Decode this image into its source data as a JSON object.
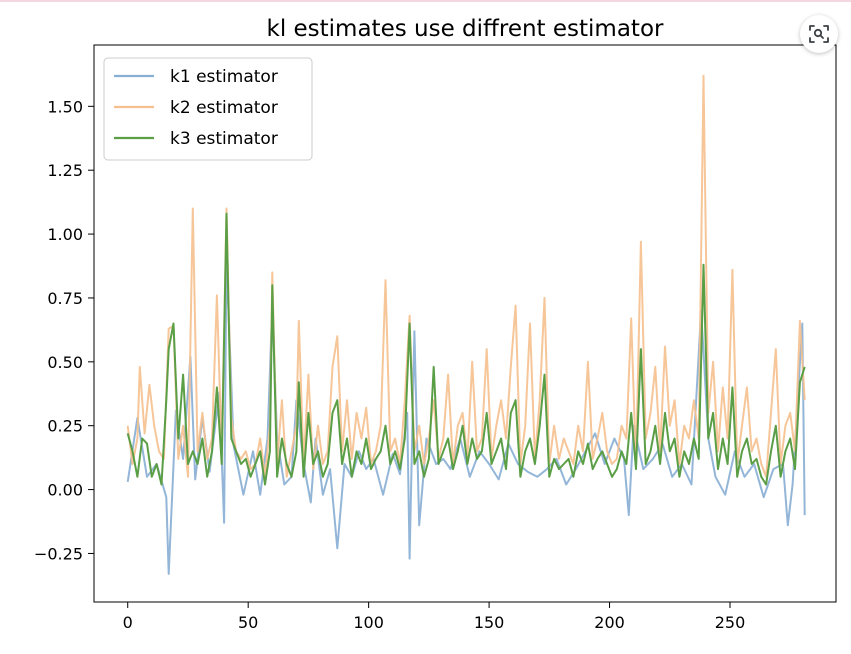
{
  "ui": {
    "lens_icon": "image-search-icon"
  },
  "chart_data": {
    "type": "line",
    "title": "kl estimates use diffrent estimator",
    "xlabel": "",
    "ylabel": "",
    "xlim": [
      -14,
      294
    ],
    "ylim": [
      -0.44,
      1.74
    ],
    "xticks": [
      0,
      50,
      100,
      150,
      200,
      250
    ],
    "yticks": [
      -0.25,
      0.0,
      0.25,
      0.5,
      0.75,
      1.0,
      1.25,
      1.5
    ],
    "ytick_labels": [
      "−0.25",
      "0.00",
      "0.25",
      "0.50",
      "0.75",
      "1.00",
      "1.25",
      "1.50"
    ],
    "grid": false,
    "legend_position": "upper left",
    "series": [
      {
        "name": "k1 estimator",
        "color": "#87aed4",
        "x": [
          0,
          4,
          8,
          12,
          16,
          17,
          20,
          23,
          26,
          28,
          31,
          34,
          38,
          40,
          41,
          44,
          48,
          52,
          55,
          58,
          60,
          62,
          65,
          68,
          70,
          73,
          76,
          78,
          81,
          84,
          87,
          90,
          93,
          96,
          99,
          102,
          106,
          110,
          113,
          116,
          117,
          119,
          121,
          124,
          128,
          131,
          134,
          138,
          142,
          146,
          150,
          154,
          158,
          162,
          166,
          170,
          174,
          178,
          182,
          186,
          190,
          194,
          198,
          202,
          206,
          208,
          210,
          214,
          218,
          222,
          226,
          230,
          234,
          238,
          239,
          241,
          244,
          248,
          252,
          256,
          260,
          264,
          268,
          272,
          274,
          276,
          280,
          281
        ],
        "y": [
          0.03,
          0.28,
          0.05,
          0.1,
          -0.03,
          -0.33,
          0.31,
          0.12,
          0.52,
          0.04,
          0.28,
          0.07,
          0.38,
          -0.13,
          0.9,
          0.17,
          -0.02,
          0.15,
          -0.02,
          0.2,
          0.72,
          0.2,
          0.02,
          0.05,
          0.35,
          0.1,
          -0.05,
          0.2,
          -0.02,
          0.08,
          -0.23,
          0.1,
          0.05,
          0.15,
          0.08,
          0.12,
          -0.02,
          0.14,
          0.06,
          0.3,
          -0.27,
          0.62,
          -0.14,
          0.2,
          0.1,
          0.12,
          0.08,
          0.2,
          0.05,
          0.15,
          0.1,
          0.04,
          0.18,
          0.1,
          0.07,
          0.05,
          0.08,
          0.12,
          0.02,
          0.08,
          0.15,
          0.22,
          0.1,
          0.2,
          0.12,
          -0.1,
          0.25,
          0.08,
          0.12,
          0.18,
          0.05,
          0.1,
          0.02,
          0.7,
          0.54,
          0.2,
          0.05,
          -0.02,
          0.15,
          0.05,
          0.1,
          -0.03,
          0.08,
          0.1,
          -0.14,
          0.02,
          0.65,
          -0.1
        ]
      },
      {
        "name": "k2 estimator",
        "color": "#f5c08e",
        "x": [
          0,
          2,
          4,
          5,
          7,
          9,
          11,
          13,
          15,
          17,
          19,
          21,
          23,
          25,
          27,
          29,
          31,
          33,
          35,
          37,
          39,
          41,
          43,
          45,
          47,
          49,
          51,
          53,
          55,
          57,
          59,
          60,
          62,
          64,
          66,
          68,
          70,
          71,
          73,
          75,
          77,
          79,
          81,
          83,
          85,
          87,
          89,
          91,
          93,
          95,
          97,
          99,
          101,
          103,
          105,
          107,
          109,
          111,
          113,
          115,
          117,
          119,
          121,
          123,
          125,
          127,
          129,
          131,
          133,
          135,
          137,
          139,
          141,
          143,
          145,
          147,
          149,
          151,
          153,
          155,
          157,
          159,
          161,
          163,
          165,
          167,
          169,
          171,
          173,
          175,
          177,
          179,
          181,
          183,
          185,
          187,
          189,
          191,
          193,
          195,
          197,
          199,
          201,
          203,
          205,
          207,
          209,
          211,
          213,
          215,
          217,
          219,
          221,
          223,
          225,
          227,
          229,
          231,
          233,
          235,
          237,
          239,
          241,
          243,
          245,
          247,
          249,
          251,
          253,
          255,
          257,
          259,
          261,
          263,
          265,
          267,
          269,
          271,
          273,
          275,
          277,
          279,
          281
        ],
        "y": [
          0.25,
          0.1,
          0.2,
          0.48,
          0.22,
          0.41,
          0.25,
          0.15,
          0.12,
          0.63,
          0.64,
          0.12,
          0.25,
          0.05,
          1.1,
          0.15,
          0.3,
          0.12,
          0.2,
          0.76,
          0.15,
          1.1,
          0.28,
          0.15,
          0.12,
          0.15,
          0.08,
          0.1,
          0.2,
          0.05,
          0.25,
          0.85,
          0.1,
          0.35,
          0.05,
          0.15,
          0.25,
          0.66,
          0.1,
          0.45,
          0.08,
          0.25,
          0.1,
          0.15,
          0.48,
          0.6,
          0.15,
          0.35,
          0.12,
          0.3,
          0.2,
          0.32,
          0.1,
          0.15,
          0.25,
          0.82,
          0.15,
          0.2,
          0.1,
          0.35,
          0.68,
          0.15,
          0.25,
          0.1,
          0.2,
          0.35,
          0.12,
          0.2,
          0.45,
          0.1,
          0.25,
          0.3,
          0.12,
          0.5,
          0.15,
          0.2,
          0.55,
          0.12,
          0.25,
          0.35,
          0.2,
          0.48,
          0.72,
          0.1,
          0.25,
          0.65,
          0.12,
          0.35,
          0.75,
          0.1,
          0.25,
          0.12,
          0.2,
          0.15,
          0.1,
          0.25,
          0.15,
          0.5,
          0.12,
          0.2,
          0.3,
          0.15,
          0.1,
          0.12,
          0.25,
          0.2,
          0.67,
          0.1,
          0.97,
          0.2,
          0.3,
          0.48,
          0.15,
          0.56,
          0.25,
          0.35,
          0.1,
          0.25,
          0.2,
          0.35,
          0.2,
          1.62,
          0.3,
          0.5,
          0.15,
          0.4,
          0.2,
          0.86,
          0.1,
          0.25,
          0.4,
          0.15,
          0.2,
          0.1,
          0.05,
          0.3,
          0.55,
          0.1,
          0.25,
          0.3,
          0.15,
          0.66,
          0.35
        ]
      },
      {
        "name": "k3 estimator",
        "color": "#5a9e46",
        "x": [
          0,
          2,
          4,
          6,
          8,
          10,
          12,
          14,
          16,
          17,
          19,
          21,
          23,
          25,
          27,
          29,
          31,
          33,
          35,
          37,
          39,
          41,
          43,
          45,
          47,
          49,
          51,
          53,
          55,
          57,
          59,
          60,
          62,
          64,
          66,
          68,
          70,
          71,
          73,
          75,
          77,
          79,
          81,
          83,
          85,
          87,
          89,
          91,
          93,
          95,
          97,
          99,
          101,
          103,
          105,
          107,
          109,
          111,
          113,
          115,
          117,
          119,
          121,
          123,
          125,
          127,
          129,
          131,
          133,
          135,
          137,
          139,
          141,
          143,
          145,
          147,
          149,
          151,
          153,
          155,
          157,
          159,
          161,
          163,
          165,
          167,
          169,
          171,
          173,
          175,
          177,
          179,
          181,
          183,
          185,
          187,
          189,
          191,
          193,
          195,
          197,
          199,
          201,
          203,
          205,
          207,
          209,
          211,
          213,
          215,
          217,
          219,
          221,
          223,
          225,
          227,
          229,
          231,
          233,
          235,
          237,
          239,
          241,
          243,
          245,
          247,
          249,
          251,
          253,
          255,
          257,
          259,
          261,
          263,
          265,
          267,
          269,
          271,
          273,
          275,
          277,
          279,
          281
        ],
        "y": [
          0.22,
          0.15,
          0.05,
          0.2,
          0.18,
          0.05,
          0.1,
          0.02,
          0.35,
          0.55,
          0.65,
          0.2,
          0.45,
          0.1,
          0.15,
          0.1,
          0.2,
          0.05,
          0.15,
          0.4,
          0.1,
          1.08,
          0.2,
          0.15,
          0.1,
          0.12,
          0.05,
          0.1,
          0.15,
          0.02,
          0.15,
          0.8,
          0.05,
          0.2,
          0.1,
          0.05,
          0.15,
          0.42,
          0.05,
          0.3,
          0.1,
          0.15,
          0.05,
          0.1,
          0.3,
          0.35,
          0.1,
          0.2,
          0.05,
          0.15,
          0.1,
          0.2,
          0.08,
          0.12,
          0.15,
          0.25,
          0.1,
          0.15,
          0.08,
          0.2,
          0.65,
          0.1,
          0.15,
          0.05,
          0.12,
          0.48,
          0.1,
          0.15,
          0.2,
          0.08,
          0.15,
          0.25,
          0.1,
          0.2,
          0.12,
          0.15,
          0.3,
          0.1,
          0.15,
          0.2,
          0.08,
          0.3,
          0.35,
          0.05,
          0.15,
          0.2,
          0.1,
          0.25,
          0.45,
          0.05,
          0.12,
          0.08,
          0.1,
          0.12,
          0.05,
          0.15,
          0.1,
          0.18,
          0.08,
          0.12,
          0.15,
          0.1,
          0.05,
          0.08,
          0.15,
          0.1,
          0.3,
          0.08,
          0.55,
          0.1,
          0.15,
          0.25,
          0.1,
          0.3,
          0.15,
          0.2,
          0.05,
          0.15,
          0.1,
          0.2,
          0.12,
          0.88,
          0.2,
          0.3,
          0.08,
          0.2,
          0.1,
          0.4,
          0.05,
          0.15,
          0.2,
          0.1,
          0.12,
          0.05,
          0.02,
          0.15,
          0.25,
          0.05,
          0.15,
          0.2,
          0.08,
          0.42,
          0.48
        ]
      }
    ]
  }
}
